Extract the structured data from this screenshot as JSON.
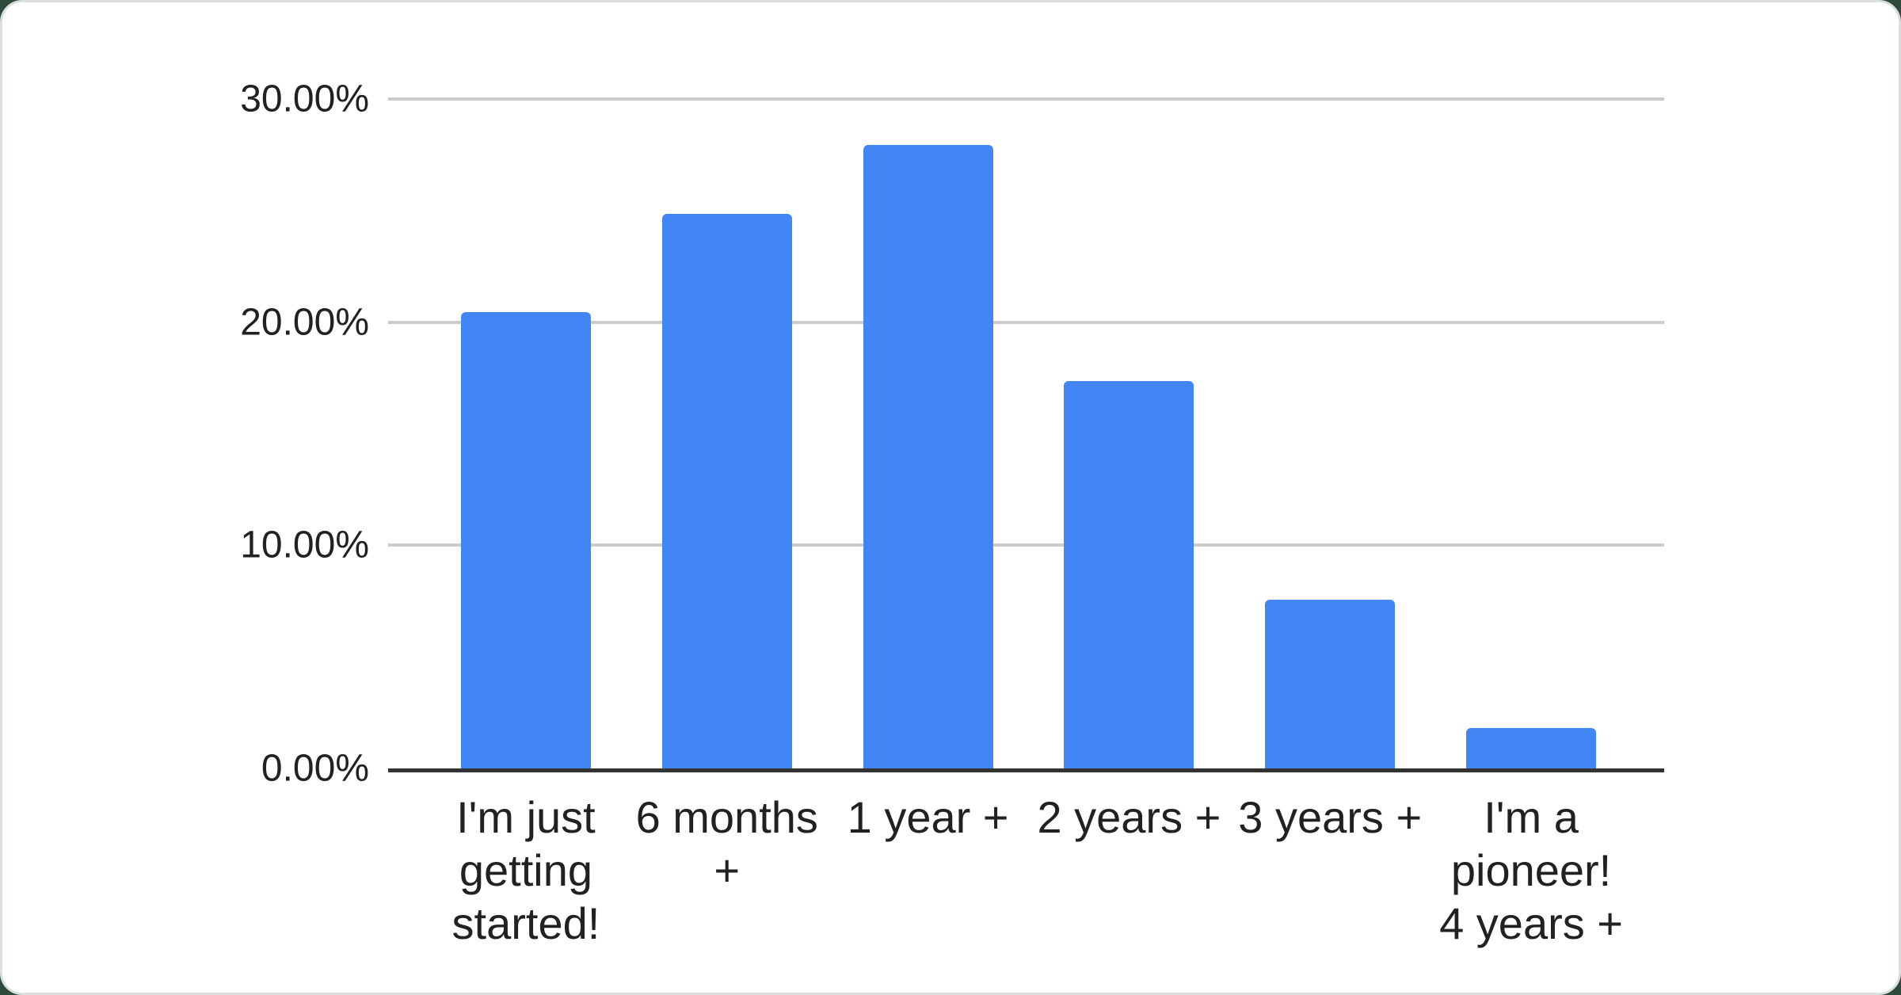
{
  "page": {
    "background_color": "#2d4a3a",
    "card_background": "#ffffff",
    "card_border_color": "#d9dee1"
  },
  "chart_data": {
    "type": "bar",
    "title": "",
    "xlabel": "",
    "ylabel": "",
    "categories": [
      "I'm just getting started!",
      "6 months +",
      "1 year +",
      "2 years +",
      "3 years +",
      "I'm a pioneer! 4 years +"
    ],
    "categories_wrapped": [
      "I'm just\ngetting\nstarted!",
      "6 months\n+",
      "1 year +",
      "2 years +",
      "3 years +",
      "I'm a\npioneer!\n4 years +"
    ],
    "values": [
      20.45,
      24.85,
      27.95,
      17.35,
      7.55,
      1.8
    ],
    "unit": "%",
    "ylim": [
      0,
      30
    ],
    "y_ticks": [
      {
        "value": 30,
        "label": "30.00%"
      },
      {
        "value": 20,
        "label": "20.00%"
      },
      {
        "value": 10,
        "label": "10.00%"
      },
      {
        "value": 0,
        "label": "0.00%"
      }
    ],
    "grid": true,
    "legend": "none",
    "colors": {
      "bar": "#4285f4",
      "gridline": "#cccccc",
      "axis_line": "#333333",
      "tick_label": "#202124"
    }
  }
}
